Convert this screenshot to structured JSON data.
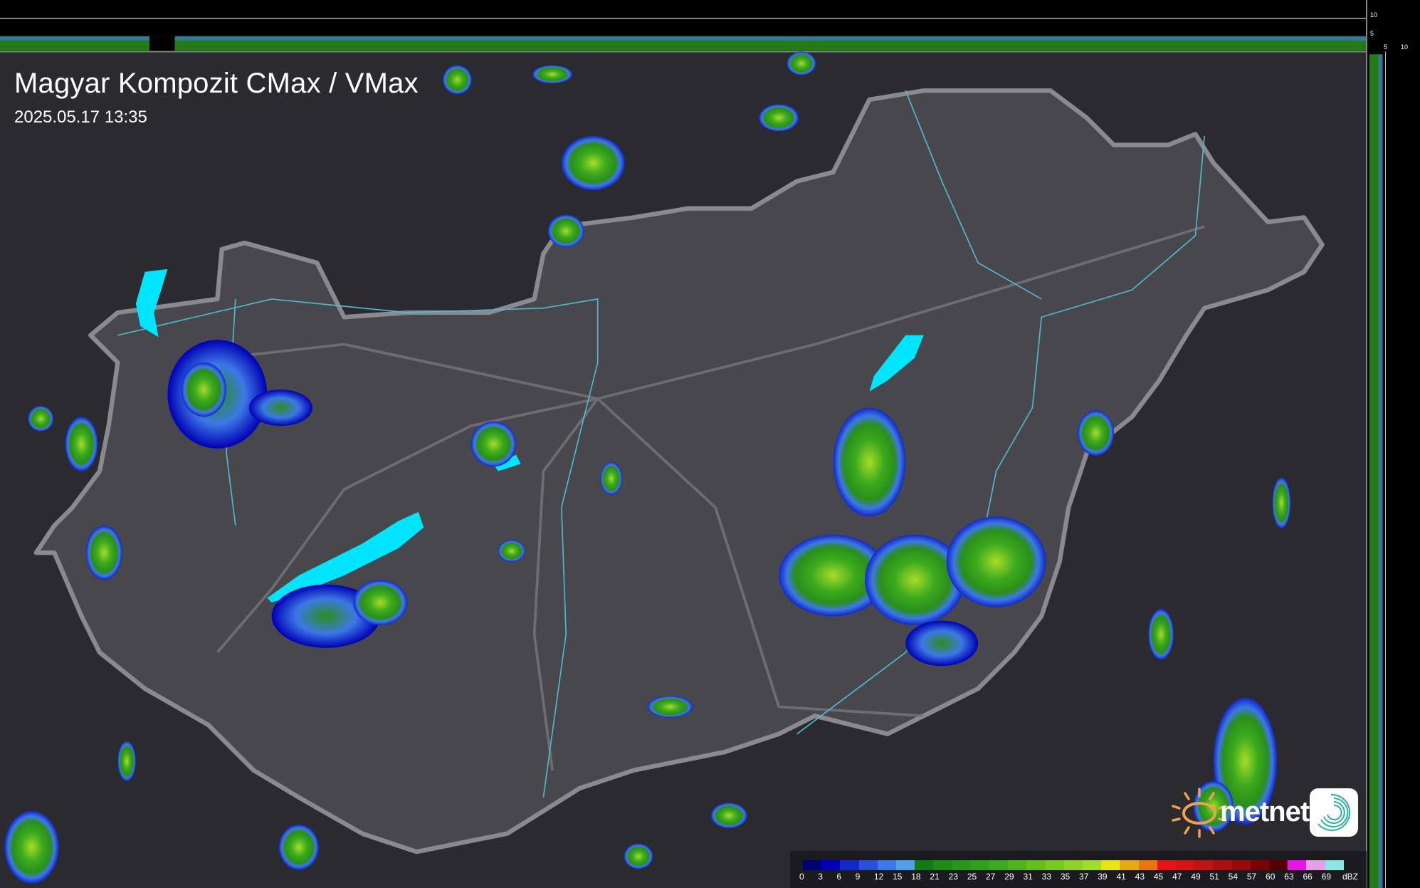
{
  "header": {
    "title": "Magyar Kompozit CMax / VMax",
    "timestamp": "2025.05.17 13:35"
  },
  "profile_ticks": {
    "vertical": [
      "10",
      "5"
    ],
    "horizontal": [
      "5",
      "10"
    ]
  },
  "legend": {
    "unit": "dBZ",
    "labels": [
      "0",
      "3",
      "6",
      "9",
      "12",
      "15",
      "18",
      "21",
      "23",
      "25",
      "27",
      "29",
      "31",
      "33",
      "35",
      "37",
      "39",
      "41",
      "43",
      "45",
      "47",
      "49",
      "51",
      "54",
      "57",
      "60",
      "63",
      "66",
      "69"
    ],
    "colors": [
      "#00006e",
      "#0000b4",
      "#1428c8",
      "#2850dc",
      "#3c78e6",
      "#50a0e6",
      "#147814",
      "#1e8c14",
      "#28961e",
      "#32a01e",
      "#3caa1e",
      "#50b41e",
      "#64be1e",
      "#78c81e",
      "#8cd228",
      "#a0dc28",
      "#e6e614",
      "#e6aa14",
      "#e67814",
      "#e61414",
      "#d21414",
      "#be1414",
      "#aa1010",
      "#960a0a",
      "#780505",
      "#500000",
      "#e614e6",
      "#e6a0e6",
      "#8ce6e6"
    ]
  },
  "brand": {
    "name": "metnet"
  },
  "colors": {
    "background": "#2b2b2f",
    "country": "#4a4a4e",
    "border": "#8a8a8e",
    "rivers": "#4fb8d0",
    "lakes": "#00e5ff"
  }
}
